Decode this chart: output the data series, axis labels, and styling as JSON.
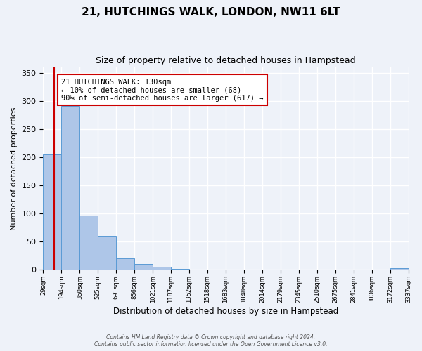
{
  "title": "21, HUTCHINGS WALK, LONDON, NW11 6LT",
  "subtitle": "Size of property relative to detached houses in Hampstead",
  "bar_values": [
    205,
    291,
    97,
    60,
    21,
    11,
    5,
    2,
    1,
    1,
    0,
    0,
    0,
    0,
    0,
    0,
    0,
    0,
    0,
    3
  ],
  "x_labels": [
    "29sqm",
    "194sqm",
    "360sqm",
    "525sqm",
    "691sqm",
    "856sqm",
    "1021sqm",
    "1187sqm",
    "1352sqm",
    "1518sqm",
    "1683sqm",
    "1848sqm",
    "2014sqm",
    "2179sqm",
    "2345sqm",
    "2510sqm",
    "2675sqm",
    "2841sqm",
    "3006sqm",
    "3172sqm",
    "3337sqm"
  ],
  "bar_color": "#aec6e8",
  "bar_edge_color": "#5b9bd5",
  "bar_edge_width": 0.7,
  "vline_color": "#cc0000",
  "ylabel": "Number of detached properties",
  "xlabel": "Distribution of detached houses by size in Hampstead",
  "ylim": [
    0,
    360
  ],
  "yticks": [
    0,
    50,
    100,
    150,
    200,
    250,
    300,
    350
  ],
  "annotation_title": "21 HUTCHINGS WALK: 130sqm",
  "annotation_line1": "← 10% of detached houses are smaller (68)",
  "annotation_line2": "90% of semi-detached houses are larger (617) →",
  "annotation_box_color": "#ffffff",
  "annotation_border_color": "#cc0000",
  "footer_line1": "Contains HM Land Registry data © Crown copyright and database right 2024.",
  "footer_line2": "Contains public sector information licensed under the Open Government Licence v3.0.",
  "background_color": "#eef2f9",
  "grid_color": "#ffffff"
}
